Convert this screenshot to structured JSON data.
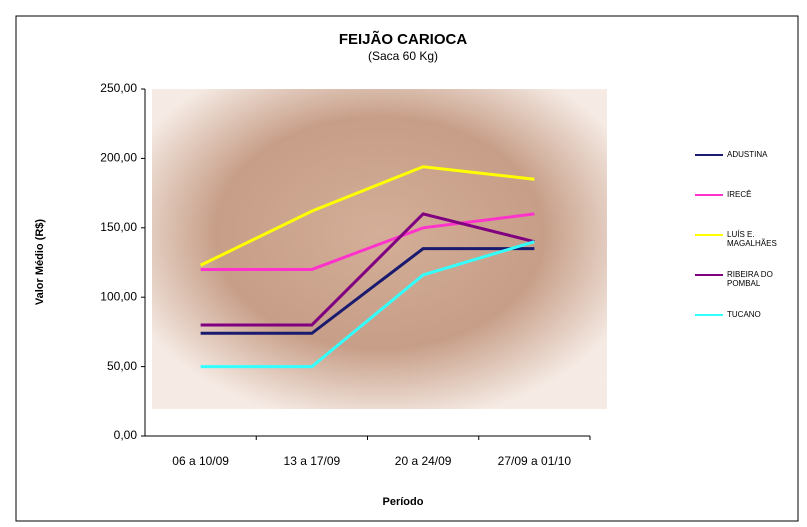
{
  "chart_data": {
    "type": "line",
    "title": "FEIJÃO CARIOCA",
    "subtitle": "(Saca 60 Kg)",
    "x_label": "Período",
    "y_label": "Valor Médio (R$)",
    "categories": [
      "06 a 10/09",
      "13 a 17/09",
      "20 a 24/09",
      "27/09 a 01/10"
    ],
    "series": [
      {
        "name": "ADUSTINA",
        "color": "#1a1a6e",
        "values": [
          74,
          74,
          135,
          135
        ]
      },
      {
        "name": "IRECÊ",
        "color": "#ff33cc",
        "values": [
          120,
          120,
          150,
          160
        ]
      },
      {
        "name": "LUÍS E. MAGALHÃES",
        "color": "#ffff00",
        "values": [
          123,
          162,
          194,
          185
        ]
      },
      {
        "name": "RIBEIRA DO POMBAL",
        "color": "#800080",
        "values": [
          80,
          80,
          160,
          140
        ]
      },
      {
        "name": "TUCANO",
        "color": "#33ffff",
        "values": [
          50,
          50,
          116,
          140
        ]
      }
    ],
    "ylim": [
      0,
      250
    ],
    "yticks": [
      {
        "value": 0,
        "label": "0,00"
      },
      {
        "value": 50,
        "label": "50,00"
      },
      {
        "value": 100,
        "label": "100,00"
      },
      {
        "value": 150,
        "label": "150,00"
      },
      {
        "value": 200,
        "label": "200,00"
      },
      {
        "value": 250,
        "label": "250,00"
      }
    ]
  }
}
